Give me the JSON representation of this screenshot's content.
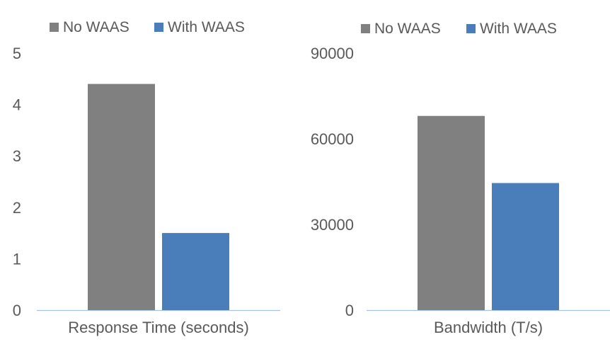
{
  "chart_data": [
    {
      "type": "bar",
      "categories": [
        "Response Time (seconds)"
      ],
      "series": [
        {
          "name": "No WAAS",
          "values": [
            4.4
          ]
        },
        {
          "name": "With WAAS",
          "values": [
            1.5
          ]
        }
      ],
      "yticks": [
        "0",
        "1",
        "2",
        "3",
        "4",
        "5"
      ],
      "ylim": [
        0,
        5
      ],
      "legend": "top",
      "grid": false
    },
    {
      "type": "bar",
      "categories": [
        "Bandwidth (T/s)"
      ],
      "series": [
        {
          "name": "No WAAS",
          "values": [
            68000
          ]
        },
        {
          "name": "With WAAS",
          "values": [
            44500
          ]
        }
      ],
      "yticks": [
        "0",
        "30000",
        "60000",
        "90000"
      ],
      "ylim": [
        0,
        90000
      ],
      "legend": "top",
      "grid": false
    }
  ],
  "colors": {
    "no_waas": "#808080",
    "with_waas": "#4a7ebb",
    "axis": "#a6c3e3",
    "text": "#595959"
  }
}
